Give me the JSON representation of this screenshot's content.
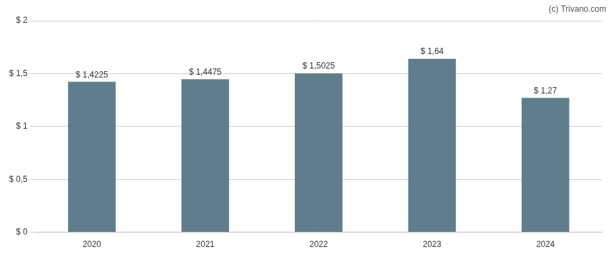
{
  "chart_data": {
    "type": "bar",
    "categories": [
      "2020",
      "2021",
      "2022",
      "2023",
      "2024"
    ],
    "values": [
      1.4225,
      1.4475,
      1.5025,
      1.64,
      1.27
    ],
    "value_labels": [
      "$ 1,4225",
      "$ 1,4475",
      "$ 1,5025",
      "$ 1,64",
      "$ 1,27"
    ],
    "data_labels": true,
    "color": "#5f7d8c",
    "ylim": [
      0,
      2.0
    ],
    "yticks": [
      {
        "value": 0,
        "label": "$ 0"
      },
      {
        "value": 0.5,
        "label": "$ 0,5"
      },
      {
        "value": 1.0,
        "label": "$ 1"
      },
      {
        "value": 1.5,
        "label": "$ 1,5"
      },
      {
        "value": 2.0,
        "label": "$ 2"
      }
    ],
    "grid": true,
    "annotations": [
      "(c) Trivano.com"
    ]
  }
}
